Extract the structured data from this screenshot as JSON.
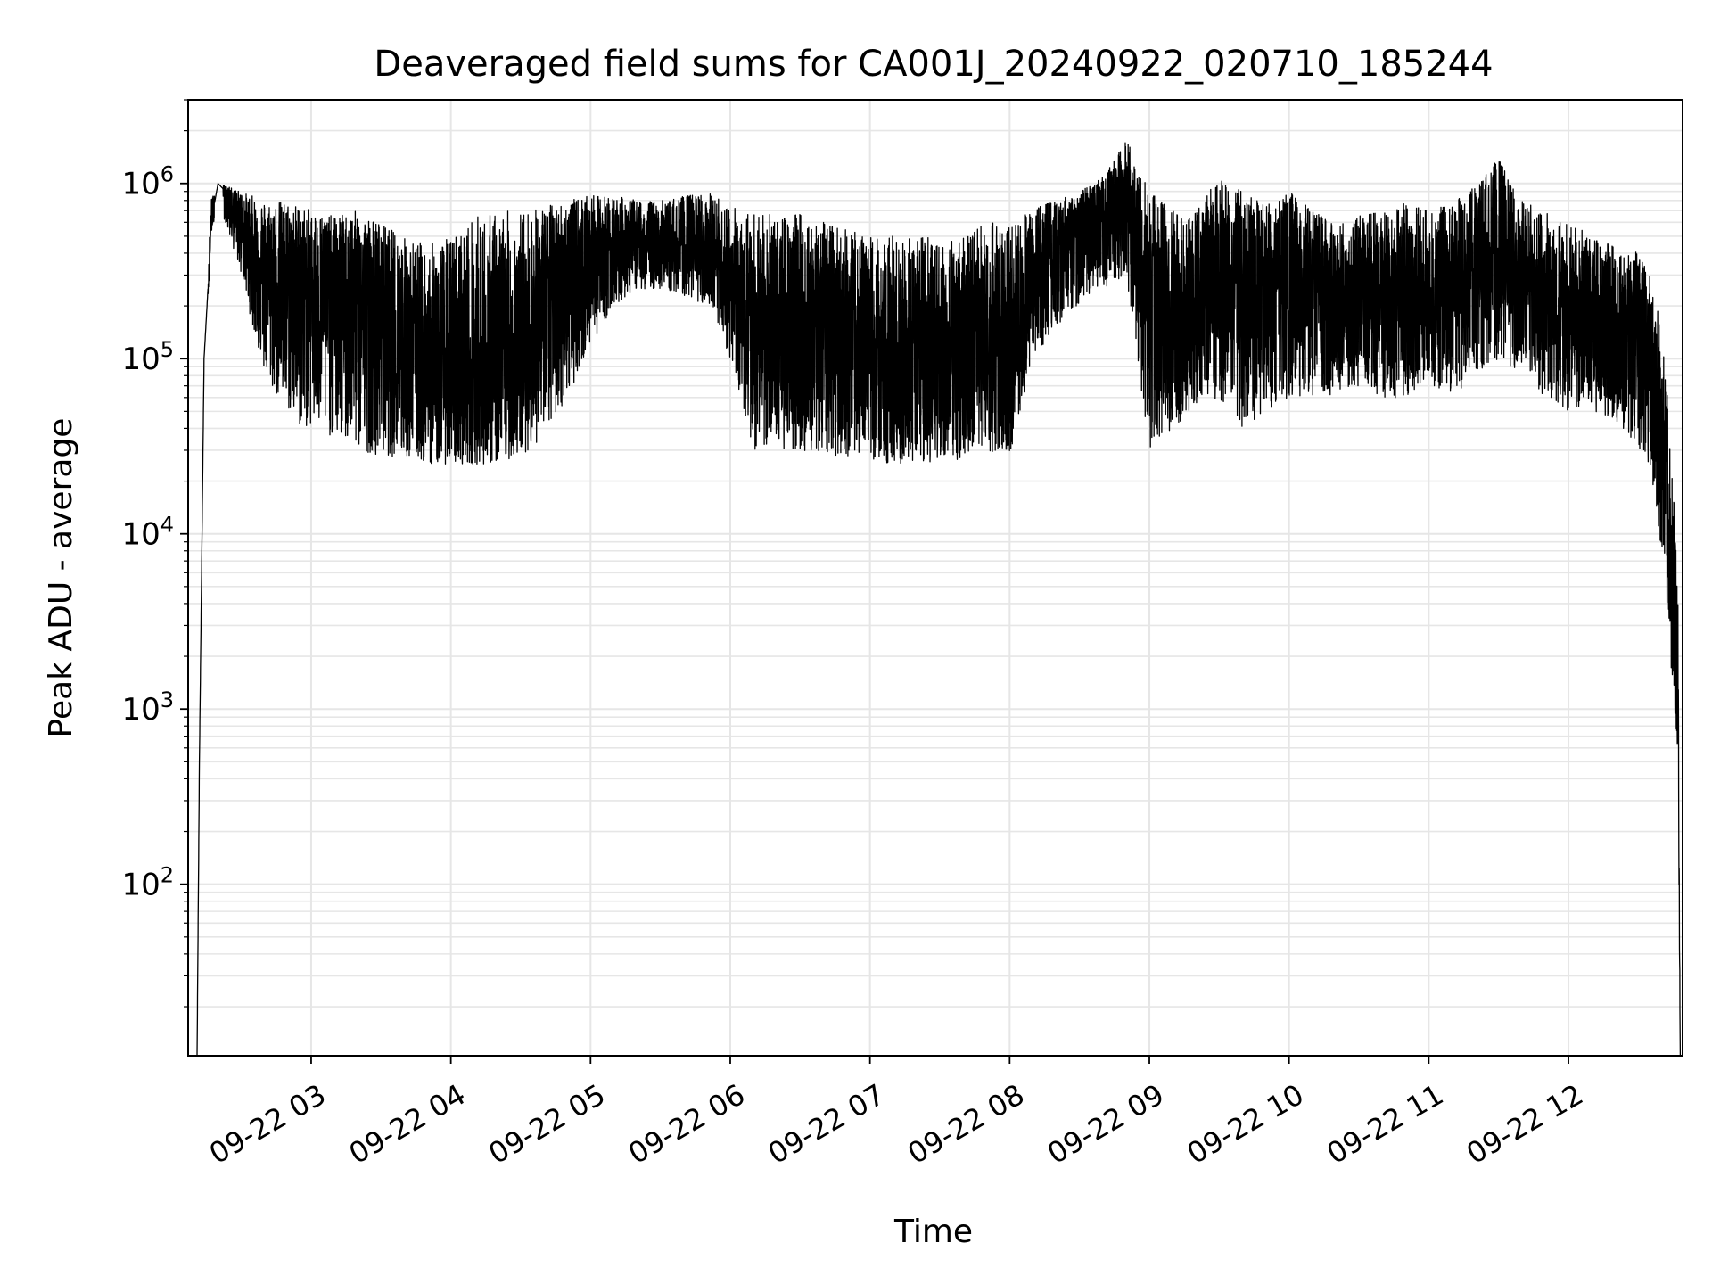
{
  "chart_data": {
    "type": "line",
    "title": "Deaveraged field sums for CA001J_20240922_020710_185244",
    "xlabel": "Time",
    "ylabel": "Peak ADU - average",
    "xlim": [
      "2024-09-22T02:07:10",
      "2024-09-22T12:49:00"
    ],
    "ylim": [
      10.5,
      3000000
    ],
    "yscale": "log",
    "grid": "on (major and minor)",
    "line_color": "#000000",
    "grid_color": "#e6e6e6",
    "x_ticks": [
      {
        "t": "2024-09-22T03:00",
        "label": "09-22 03"
      },
      {
        "t": "2024-09-22T04:00",
        "label": "09-22 04"
      },
      {
        "t": "2024-09-22T05:00",
        "label": "09-22 05"
      },
      {
        "t": "2024-09-22T06:00",
        "label": "09-22 06"
      },
      {
        "t": "2024-09-22T07:00",
        "label": "09-22 07"
      },
      {
        "t": "2024-09-22T08:00",
        "label": "09-22 08"
      },
      {
        "t": "2024-09-22T09:00",
        "label": "09-22 09"
      },
      {
        "t": "2024-09-22T10:00",
        "label": "09-22 10"
      },
      {
        "t": "2024-09-22T11:00",
        "label": "09-22 11"
      },
      {
        "t": "2024-09-22T12:00",
        "label": "09-22 12"
      }
    ],
    "y_ticks": [
      {
        "value": 100,
        "base": "10",
        "exp": "2"
      },
      {
        "value": 1000,
        "base": "10",
        "exp": "3"
      },
      {
        "value": 10000,
        "base": "10",
        "exp": "4"
      },
      {
        "value": 100000,
        "base": "10",
        "exp": "5"
      },
      {
        "value": 1000000,
        "base": "10",
        "exp": "6"
      }
    ],
    "series": [
      {
        "x": [
          "2024-09-22T02:11",
          "2024-09-22T02:12",
          "2024-09-22T02:14",
          "2024-09-22T02:16",
          "2024-09-22T02:17",
          "2024-09-22T02:20",
          "2024-09-22T02:25",
          "2024-09-22T02:30",
          "2024-09-22T02:35",
          "2024-09-22T02:40",
          "2024-09-22T02:45",
          "2024-09-22T02:50",
          "2024-09-22T02:55",
          "2024-09-22T03:00",
          "2024-09-22T03:10",
          "2024-09-22T03:20",
          "2024-09-22T03:30",
          "2024-09-22T03:40",
          "2024-09-22T03:50",
          "2024-09-22T04:00",
          "2024-09-22T04:10",
          "2024-09-22T04:20",
          "2024-09-22T04:30",
          "2024-09-22T04:40",
          "2024-09-22T04:50",
          "2024-09-22T05:00",
          "2024-09-22T05:10",
          "2024-09-22T05:20",
          "2024-09-22T05:30",
          "2024-09-22T05:40",
          "2024-09-22T05:50",
          "2024-09-22T06:00",
          "2024-09-22T06:10",
          "2024-09-22T06:20",
          "2024-09-22T06:30",
          "2024-09-22T06:40",
          "2024-09-22T06:50",
          "2024-09-22T07:00",
          "2024-09-22T07:10",
          "2024-09-22T07:20",
          "2024-09-22T07:30",
          "2024-09-22T07:40",
          "2024-09-22T07:50",
          "2024-09-22T08:00",
          "2024-09-22T08:10",
          "2024-09-22T08:20",
          "2024-09-22T08:30",
          "2024-09-22T08:40",
          "2024-09-22T08:50",
          "2024-09-22T09:00",
          "2024-09-22T09:10",
          "2024-09-22T09:20",
          "2024-09-22T09:30",
          "2024-09-22T09:40",
          "2024-09-22T09:50",
          "2024-09-22T10:00",
          "2024-09-22T10:10",
          "2024-09-22T10:20",
          "2024-09-22T10:30",
          "2024-09-22T10:40",
          "2024-09-22T10:50",
          "2024-09-22T11:00",
          "2024-09-22T11:10",
          "2024-09-22T11:20",
          "2024-09-22T11:30",
          "2024-09-22T11:40",
          "2024-09-22T11:50",
          "2024-09-22T12:00",
          "2024-09-22T12:10",
          "2024-09-22T12:20",
          "2024-09-22T12:30",
          "2024-09-22T12:35",
          "2024-09-22T12:40",
          "2024-09-22T12:43",
          "2024-09-22T12:45",
          "2024-09-22T12:47",
          "2024-09-22T12:48"
        ],
        "y": [
          10.5,
          500,
          100000,
          300000,
          600000,
          1000000,
          850000,
          650000,
          400000,
          350000,
          300000,
          250000,
          300000,
          280000,
          270000,
          250000,
          180000,
          120000,
          90000,
          70000,
          60000,
          70000,
          90000,
          200000,
          300000,
          400000,
          450000,
          450000,
          420000,
          400000,
          380000,
          250000,
          150000,
          140000,
          160000,
          150000,
          120000,
          100000,
          90000,
          110000,
          100000,
          90000,
          120000,
          100000,
          300000,
          400000,
          600000,
          700000,
          900000,
          200000,
          150000,
          250000,
          300000,
          350000,
          300000,
          300000,
          250000,
          200000,
          220000,
          230000,
          200000,
          220000,
          250000,
          300000,
          350000,
          250000,
          200000,
          180000,
          170000,
          150000,
          130000,
          100000,
          30000,
          10000,
          3000,
          1000,
          10.5
        ],
        "envelope_upper": [
          10.5,
          500,
          100000,
          400000,
          900000,
          1000000,
          950000,
          900000,
          850000,
          800000,
          800000,
          800000,
          750000,
          700000,
          650000,
          700000,
          600000,
          500000,
          450000,
          500000,
          650000,
          700000,
          700000,
          750000,
          800000,
          850000,
          850000,
          800000,
          800000,
          850000,
          900000,
          750000,
          700000,
          650000,
          700000,
          600000,
          550000,
          500000,
          500000,
          500000,
          500000,
          500000,
          600000,
          600000,
          750000,
          800000,
          900000,
          1100000,
          1800000,
          900000,
          700000,
          700000,
          1100000,
          900000,
          750000,
          900000,
          700000,
          600000,
          650000,
          700000,
          800000,
          700000,
          800000,
          1000000,
          1400000,
          800000,
          700000,
          600000,
          500000,
          450000,
          400000,
          300000,
          150000,
          50000,
          20000,
          5000,
          10.5
        ],
        "envelope_lower": [
          10.5,
          500,
          100000,
          250000,
          500000,
          800000,
          500000,
          300000,
          150000,
          80000,
          60000,
          50000,
          40000,
          40000,
          35000,
          30000,
          28000,
          27000,
          25000,
          25000,
          25000,
          25000,
          28000,
          35000,
          60000,
          120000,
          200000,
          250000,
          250000,
          230000,
          200000,
          100000,
          30000,
          30000,
          30000,
          28000,
          28000,
          26000,
          25000,
          25000,
          25000,
          24000,
          28000,
          28000,
          100000,
          150000,
          200000,
          250000,
          300000,
          30000,
          40000,
          50000,
          60000,
          40000,
          50000,
          60000,
          60000,
          60000,
          70000,
          60000,
          60000,
          70000,
          60000,
          80000,
          100000,
          80000,
          60000,
          50000,
          50000,
          45000,
          30000,
          25000,
          8000,
          3000,
          1000,
          500,
          10.5
        ]
      }
    ]
  }
}
